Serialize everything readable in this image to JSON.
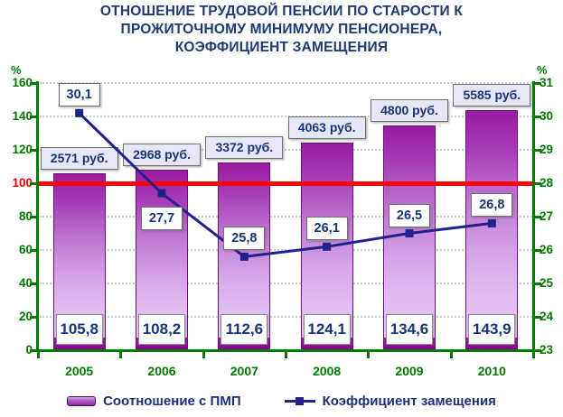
{
  "title_lines": [
    "ОТНОШЕНИЕ ТРУДОВОЙ ПЕНСИИ ПО СТАРОСТИ К",
    "ПРОЖИТОЧНОМУ МИНИМУМУ ПЕНСИОНЕРА,",
    "КОЭФФИЦИЕНТ ЗАМЕЩЕНИЯ"
  ],
  "left_axis": {
    "unit": "%",
    "min": 0,
    "max": 160,
    "step": 20,
    "highlight_value": 100
  },
  "right_axis": {
    "unit": "%",
    "min": 23,
    "max": 31,
    "step": 1
  },
  "chart_data": {
    "type": "bar",
    "subtype": "bar+line combo, dual axis",
    "categories": [
      "2005",
      "2006",
      "2007",
      "2008",
      "2009",
      "2010"
    ],
    "series": [
      {
        "name": "Соотношение с ПМП",
        "type": "bar",
        "axis": "left",
        "values": [
          105.8,
          108.2,
          112.6,
          124.1,
          134.6,
          143.9
        ],
        "value_labels": [
          "105,8",
          "108,2",
          "112,6",
          "124,1",
          "134,6",
          "143,9"
        ],
        "top_labels": [
          "2571 руб.",
          "2968 руб.",
          "3372 руб.",
          "4063 руб.",
          "4800 руб.",
          "5585 руб."
        ]
      },
      {
        "name": "Коэффициент замещения",
        "type": "line",
        "axis": "right",
        "values": [
          30.1,
          27.7,
          25.8,
          26.1,
          26.5,
          26.8
        ],
        "value_labels": [
          "30,1",
          "27,7",
          "25,8",
          "26,1",
          "26,5",
          "26,8"
        ],
        "label_sides": [
          "above",
          "below",
          "above",
          "above",
          "above",
          "above"
        ]
      }
    ],
    "reference_line": {
      "axis": "left",
      "value": 100,
      "color": "#ff0000"
    },
    "grid": "horizontal dotted",
    "legend_position": "bottom",
    "ylim_left": [
      0,
      160
    ],
    "ylim_right": [
      23,
      31
    ]
  },
  "legend": {
    "bar_label": "Соотношение с ПМП",
    "line_label": "Коэффициент замещения"
  },
  "colors": {
    "title_text": "#1d3a73",
    "axis_green": "#007a00",
    "highlight_red": "#ff0000",
    "bar_dark": "#991aa0",
    "bar_light": "#e4c5f3",
    "bar_bottom_band": "#8a0194",
    "line_navy": "#22228e",
    "label_text_navy": "#17357a",
    "price_box_bg": "#e7e7f7"
  }
}
